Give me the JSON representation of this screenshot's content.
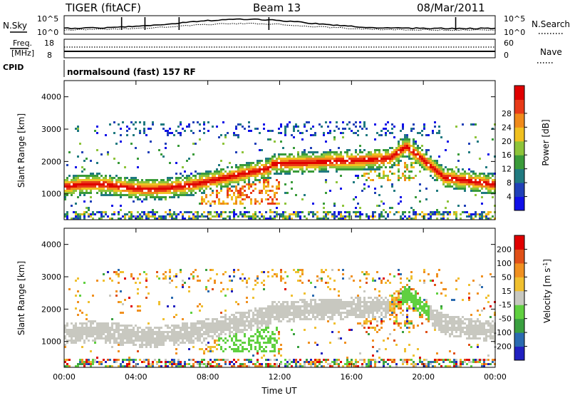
{
  "header": {
    "station": "TIGER (fitACF)",
    "beam": "Beam 13",
    "date": "08/Mar/2011"
  },
  "noise_panel": {
    "left_label": "N.Sky",
    "right_label": "N.Search",
    "left_ticks": [
      "10^5",
      "10^0"
    ],
    "right_ticks": [
      "10^5",
      "10^0"
    ]
  },
  "freq_panel": {
    "left_label_1": "Freq.",
    "left_label_2": "[MHz]",
    "right_label": "Nave",
    "left_ticks": [
      "18",
      "8"
    ],
    "right_ticks": [
      "60",
      "0"
    ]
  },
  "cpid_panel": {
    "label": "CPID",
    "program": "normalsound (fast) 157 RF"
  },
  "chart_data": [
    {
      "type": "heatmap",
      "name": "power",
      "ylabel": "Slant Range [km]",
      "ylim": [
        200,
        4500
      ],
      "yticks": [
        1000,
        2000,
        3000,
        4000
      ],
      "xlim_hours": [
        0,
        24
      ],
      "colorbar": {
        "label": "Power [dB]",
        "tick_labels": [
          "4",
          "8",
          "12",
          "16",
          "20",
          "24",
          "28"
        ],
        "colors": [
          "#1010e8",
          "#2040b8",
          "#207a80",
          "#3a9b3a",
          "#8ec43a",
          "#f0c020",
          "#f08a1a",
          "#e83a18",
          "#e00000"
        ]
      }
    },
    {
      "type": "heatmap",
      "name": "velocity",
      "ylabel": "Slant Range [km]",
      "ylim": [
        200,
        4500
      ],
      "yticks": [
        1000,
        2000,
        3000,
        4000
      ],
      "xlim_hours": [
        0,
        24
      ],
      "xticks": [
        "00:00",
        "04:00",
        "08:00",
        "12:00",
        "16:00",
        "20:00",
        "00:00"
      ],
      "xlabel": "Time UT",
      "colorbar": {
        "label": "Velocity [m s",
        "label_sup": "-1",
        "label_end": "]",
        "tick_labels": [
          "200",
          "100",
          "50",
          "15",
          "-15",
          "-50",
          "-100",
          "-200"
        ],
        "colors": [
          "#2020c0",
          "#2a6ab0",
          "#3aa040",
          "#60d040",
          "#c8c8c0",
          "#f0c030",
          "#f09020",
          "#e05018",
          "#e00000"
        ]
      }
    }
  ]
}
